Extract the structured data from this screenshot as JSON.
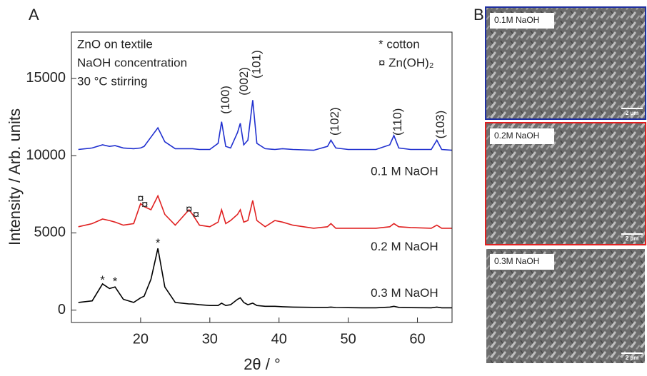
{
  "chart_data": {
    "type": "line",
    "panel": "A",
    "xlabel": "2θ / °",
    "ylabel": "Intensity / Arb. units",
    "xlim": [
      10,
      65
    ],
    "xticks": [
      20,
      30,
      40,
      50,
      60
    ],
    "ylim": [
      -800,
      18000
    ],
    "yticks": [
      0,
      5000,
      10000,
      15000
    ],
    "notes": [
      "ZnO on textile",
      "NaOH concentration",
      "30 °C stirring"
    ],
    "legend_notes": [
      "* cotton",
      "¤ Zn(OH)₂"
    ],
    "x": [
      11,
      13,
      14.5,
      15.5,
      16.3,
      17.5,
      19,
      20,
      20.5,
      21.5,
      22.5,
      23.5,
      25,
      27,
      27.5,
      28.5,
      30,
      31.2,
      31.7,
      32.3,
      33,
      34.0,
      34.4,
      34.9,
      35.5,
      36.2,
      36.8,
      38,
      39.4,
      40.5,
      42,
      45,
      47.0,
      47.5,
      48.2,
      50,
      52,
      54,
      56,
      56.6,
      57.3,
      59,
      62,
      62.8,
      63.5,
      65
    ],
    "series": [
      {
        "name": "0.1 M NaOH",
        "color": "#1f2fcf",
        "label_y": 8950,
        "values": [
          10400,
          10500,
          10700,
          10600,
          10650,
          10500,
          10450,
          10500,
          10600,
          11200,
          11800,
          10900,
          10450,
          10450,
          10450,
          10400,
          10400,
          10800,
          12200,
          10600,
          10500,
          11500,
          12100,
          10700,
          11000,
          13600,
          10800,
          10450,
          10400,
          10450,
          10400,
          10350,
          10600,
          11000,
          10500,
          10400,
          10400,
          10400,
          10700,
          11300,
          10500,
          10400,
          10400,
          11000,
          10400,
          10350
        ]
      },
      {
        "name": "0.2 M NaOH",
        "color": "#e02020",
        "label_y": 4070,
        "values": [
          5400,
          5600,
          5900,
          5800,
          5700,
          5500,
          5600,
          6900,
          6700,
          6500,
          7400,
          6200,
          5500,
          6500,
          6200,
          5500,
          5400,
          5700,
          6500,
          5600,
          5800,
          6200,
          6500,
          5700,
          5800,
          7100,
          5800,
          5400,
          5800,
          5700,
          5500,
          5300,
          5400,
          5600,
          5300,
          5300,
          5300,
          5300,
          5400,
          5600,
          5400,
          5350,
          5300,
          5500,
          5300,
          5300
        ]
      },
      {
        "name": "0.3 M NaOH",
        "color": "#000000",
        "label_y": 1060,
        "values": [
          500,
          600,
          1700,
          1400,
          1500,
          700,
          500,
          800,
          900,
          2000,
          4000,
          1500,
          500,
          400,
          400,
          350,
          300,
          300,
          450,
          300,
          350,
          700,
          800,
          500,
          350,
          450,
          300,
          250,
          250,
          220,
          200,
          180,
          180,
          200,
          170,
          160,
          150,
          150,
          200,
          250,
          180,
          160,
          150,
          200,
          150,
          150
        ]
      }
    ],
    "annotations": [
      {
        "text": "(100)",
        "x": 31.7,
        "y": 12700,
        "rotate": true
      },
      {
        "text": "(002)",
        "x": 34.4,
        "y": 13900,
        "rotate": true
      },
      {
        "text": "(101)",
        "x": 36.2,
        "y": 15000,
        "rotate": true
      },
      {
        "text": "(102)",
        "x": 47.5,
        "y": 11300,
        "rotate": true
      },
      {
        "text": "(110)",
        "x": 56.6,
        "y": 11300,
        "rotate": true
      },
      {
        "text": "(103)",
        "x": 62.8,
        "y": 11100,
        "rotate": true
      },
      {
        "text": "*",
        "x": 14.5,
        "y": 1900,
        "rotate": false
      },
      {
        "text": "*",
        "x": 16.3,
        "y": 1800,
        "rotate": false
      },
      {
        "text": "*",
        "x": 22.5,
        "y": 4300,
        "rotate": false
      },
      {
        "text": "¤",
        "x": 20,
        "y": 7200,
        "rotate": false
      },
      {
        "text": "¤",
        "x": 20.6,
        "y": 6800,
        "rotate": false
      },
      {
        "text": "¤",
        "x": 27,
        "y": 6500,
        "rotate": false
      },
      {
        "text": "¤",
        "x": 28,
        "y": 6150,
        "rotate": false
      }
    ]
  },
  "panel_b": {
    "panel": "B",
    "images": [
      {
        "label": "0.1M NaOH",
        "scale": "2 µm",
        "border": "#1f2fa0"
      },
      {
        "label": "0.2M NaOH",
        "scale": "2 µm",
        "border": "#e02020"
      },
      {
        "label": "0.3M NaOH",
        "scale": "2 µm",
        "border": "#ffffff"
      }
    ]
  }
}
